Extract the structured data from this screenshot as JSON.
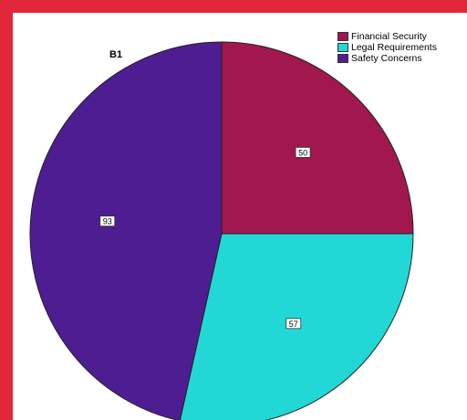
{
  "chart_data": {
    "type": "pie",
    "title": "B1",
    "categories": [
      "Financial Security",
      "Legal Requirements",
      "Safety Concerns"
    ],
    "values": [
      50,
      57,
      93
    ],
    "colors": [
      "#a2174d",
      "#22d8d6",
      "#4f1d92"
    ],
    "legend_position": "top-right",
    "start_angle_deg": 0,
    "direction": "clockwise"
  }
}
